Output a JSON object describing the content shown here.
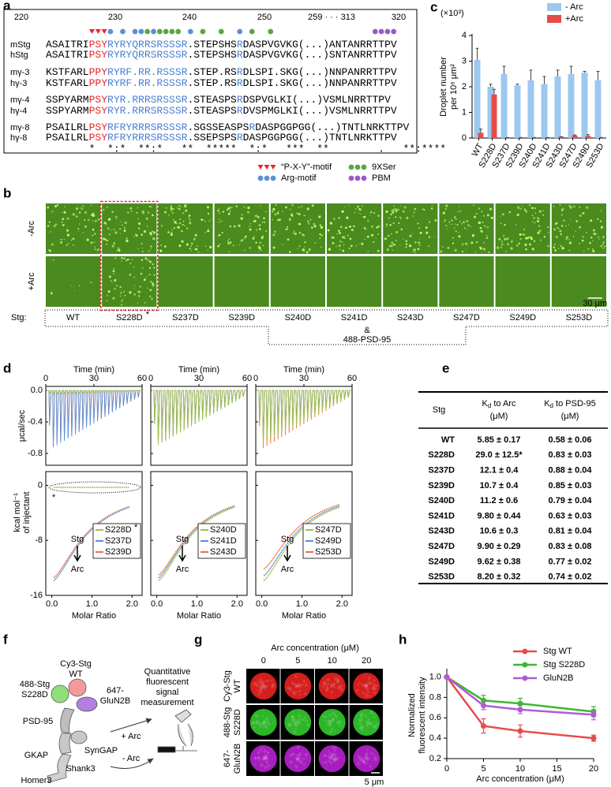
{
  "panel_a": {
    "label": "a",
    "positions": [
      220,
      230,
      240,
      250,
      "259 · · · 313",
      320
    ],
    "rows": [
      {
        "name": "mStg",
        "segments": [
          {
            "text": "ASAITRI"
          },
          {
            "text": "PSY",
            "color": "#e8262a"
          },
          {
            "text": "RYRYQRRSRSSSR",
            "color": "#4a7fd4"
          },
          {
            "text": ".STEPSHS"
          },
          {
            "text": "R",
            "color": "#4a7fd4"
          },
          {
            "text": "DASPVGVKG(...)ANTANRRTTPV"
          }
        ]
      },
      {
        "name": "hStg",
        "segments": [
          {
            "text": "ASAITRI"
          },
          {
            "text": "PSY",
            "color": "#e8262a"
          },
          {
            "text": "RYRYQRRSRSSSR",
            "color": "#4a7fd4"
          },
          {
            "text": ".STEPSHS"
          },
          {
            "text": "R",
            "color": "#4a7fd4"
          },
          {
            "text": "DASPVGVKG(...)SNTANRRTTPV"
          }
        ]
      },
      {
        "name": "mγ-3",
        "segments": [
          {
            "text": "KSTFARL"
          },
          {
            "text": "PPY",
            "color": "#e8262a"
          },
          {
            "text": "RYRF.RR.RSSSR",
            "color": "#4a7fd4"
          },
          {
            "text": ".STEP.RS"
          },
          {
            "text": "R",
            "color": "#4a7fd4"
          },
          {
            "text": "DLSPI.SKG(...)NNPANRRTTPV"
          }
        ]
      },
      {
        "name": "hγ-3",
        "segments": [
          {
            "text": "KSTFARL"
          },
          {
            "text": "PPY",
            "color": "#e8262a"
          },
          {
            "text": "RYRF.RR.RSSSR",
            "color": "#4a7fd4"
          },
          {
            "text": ".STEP.RS"
          },
          {
            "text": "R",
            "color": "#4a7fd4"
          },
          {
            "text": "DLSPI.SKG(...)NNPANRRTTPV"
          }
        ]
      },
      {
        "name": "mγ-4",
        "segments": [
          {
            "text": "SSPYARM"
          },
          {
            "text": "PSY",
            "color": "#e8262a"
          },
          {
            "text": "RYR.RRRSRSSSR",
            "color": "#4a7fd4"
          },
          {
            "text": ".STEASPS"
          },
          {
            "text": "R",
            "color": "#4a7fd4"
          },
          {
            "text": "DSPVGLKI(...)VSMLNRRTTPV"
          }
        ]
      },
      {
        "name": "hγ-4",
        "segments": [
          {
            "text": "SSPYARM"
          },
          {
            "text": "PSY",
            "color": "#e8262a"
          },
          {
            "text": "RYR.RRRSRSSSR",
            "color": "#4a7fd4"
          },
          {
            "text": ".STEASPS"
          },
          {
            "text": "R",
            "color": "#4a7fd4"
          },
          {
            "text": "DVSPMGLKI(...)VSMLNRRTTPV"
          }
        ]
      },
      {
        "name": "mγ-8",
        "segments": [
          {
            "text": "PSAILRL"
          },
          {
            "text": "PSY",
            "color": "#e8262a"
          },
          {
            "text": "RFRYRRRSRSSSR",
            "color": "#4a7fd4"
          },
          {
            "text": ".SGSSEASPS"
          },
          {
            "text": "R",
            "color": "#4a7fd4"
          },
          {
            "text": "DASPGGPGG(...)TNTLNRKTTPV"
          }
        ]
      },
      {
        "name": "hγ-8",
        "segments": [
          {
            "text": "PSAILRL"
          },
          {
            "text": "PSY",
            "color": "#e8262a"
          },
          {
            "text": "RFRYRRRSRSSSR",
            "color": "#4a7fd4"
          },
          {
            "text": ".SSEPSPS"
          },
          {
            "text": "R",
            "color": "#4a7fd4"
          },
          {
            "text": "DASPGGPGG(...)TNTLNRKTTPV"
          }
        ]
      }
    ],
    "consensus": "       *  *:*  **:*   **  *****  *:*   ***  **        .   **:****",
    "legend": [
      {
        "text": "“P-X-Y”-motif",
        "color": "#e8262a",
        "marker": "triangle"
      },
      {
        "text": "9XSer",
        "color": "#5aa640",
        "marker": "dot"
      },
      {
        "text": "Arg-motif",
        "color": "#5b8fd9",
        "marker": "dot"
      },
      {
        "text": "PBM",
        "color": "#9b59c6",
        "marker": "dot"
      }
    ]
  },
  "panel_b": {
    "label": "b",
    "rows": [
      "-Arc",
      "+Arc"
    ],
    "stg_label": "Stg:",
    "columns": [
      {
        "name": "WT"
      },
      {
        "name": "S228D",
        "mark": "*",
        "highlight": "#e8262a"
      },
      {
        "name": "S237D"
      },
      {
        "name": "S239D"
      },
      {
        "name": "S240D"
      },
      {
        "name": "S241D"
      },
      {
        "name": "S243D"
      },
      {
        "name": "S247D"
      },
      {
        "name": "S249D"
      },
      {
        "name": "S253D"
      }
    ],
    "and": "&",
    "protein": "488-PSD-95",
    "protein_color": "#2e9e3a",
    "scale": "30 μm"
  },
  "chart_data": [
    {
      "type": "bar",
      "label": "c",
      "multiplier": "(×10³)",
      "ylabel": [
        "Droplet number",
        "per 10⁶ μm²"
      ],
      "categories": [
        "WT",
        "S228D",
        "S237D",
        "S239D",
        "S240D",
        "S241D",
        "S243D",
        "S247D",
        "S249D",
        "S253D"
      ],
      "series": [
        {
          "name": "- Arc",
          "color": "#9cc8f0",
          "values": [
            3.05,
            2.0,
            2.5,
            2.05,
            2.25,
            2.1,
            2.4,
            2.5,
            2.55,
            2.25
          ],
          "errors": [
            0.45,
            0.1,
            0.3,
            0.05,
            0.4,
            0.3,
            0.25,
            0.3,
            0.05,
            0.35
          ]
        },
        {
          "name": "+Arc",
          "color": "#e84a4a",
          "values": [
            0.2,
            1.7,
            0.02,
            0.02,
            0.02,
            0.02,
            0.05,
            0.1,
            0.08,
            0.02
          ],
          "errors": [
            0.15,
            0.2,
            0,
            0,
            0,
            0,
            0,
            0.02,
            0.05,
            0
          ]
        }
      ],
      "ylim": [
        0,
        4
      ],
      "yticks": [
        0,
        1,
        2,
        3,
        4
      ]
    },
    {
      "type": "line",
      "label": "h",
      "xlabel": "Arc concentration (μM)",
      "ylabel": [
        "Normalized",
        "fluorescent intensity"
      ],
      "x": [
        0,
        5,
        10,
        20
      ],
      "series": [
        {
          "name": "Stg WT",
          "color": "#e84a4a",
          "values": [
            1.0,
            0.52,
            0.47,
            0.4
          ],
          "errors": [
            0,
            0.07,
            0.06,
            0.03
          ]
        },
        {
          "name": "Stg S228D",
          "color": "#3cb832",
          "values": [
            1.0,
            0.77,
            0.74,
            0.66
          ],
          "errors": [
            0,
            0.05,
            0.05,
            0.05
          ]
        },
        {
          "name": "GluN2B",
          "color": "#b25ad6",
          "values": [
            1.0,
            0.72,
            0.68,
            0.63
          ],
          "errors": [
            0,
            0.04,
            0.04,
            0.05
          ]
        }
      ],
      "xlim": [
        0,
        20
      ],
      "xticks": [
        0,
        5,
        10,
        15,
        20
      ],
      "ylim": [
        0.2,
        1.05
      ],
      "yticks": [
        0.2,
        0.4,
        0.6,
        0.8,
        {
          "value": 1,
          "label": "1.0"
        }
      ]
    }
  ],
  "panel_d": {
    "label": "d",
    "time_label": "Time (min)",
    "time_lim": [
      0,
      60
    ],
    "time_ticks": [
      0,
      30,
      60
    ],
    "power_label": "μcal/sec",
    "power_lim": [
      0.05,
      -0.95
    ],
    "power_ticks": [
      {
        "value": 0,
        "label": "0.0"
      },
      -0.4,
      -0.8
    ],
    "heat_label": [
      "kcal mol⁻¹",
      "of injectant"
    ],
    "heat_lim": [
      2,
      -16
    ],
    "heat_ticks": [
      0,
      -8,
      -16
    ],
    "ratio_label": "Molar Ratio",
    "ratio_lim": [
      -0.15,
      2.25
    ],
    "ratio_ticks": [
      {
        "value": 0,
        "label": "0.0"
      },
      {
        "value": 1,
        "label": "1.0"
      },
      {
        "value": 2,
        "label": "2.0"
      }
    ],
    "stg": "Stg",
    "arc": "Arc",
    "plots": [
      {
        "series": [
          {
            "name": "S228D",
            "color": "#9dc04a",
            "mark": "*"
          },
          {
            "name": "S237D",
            "color": "#5b8fd9"
          },
          {
            "name": "S239D",
            "color": "#f0703a"
          }
        ]
      },
      {
        "series": [
          {
            "name": "S240D",
            "color": "#9dc04a"
          },
          {
            "name": "S241D",
            "color": "#5b8fd9"
          },
          {
            "name": "S243D",
            "color": "#f0703a"
          }
        ]
      },
      {
        "series": [
          {
            "name": "S247D",
            "color": "#9dc04a"
          },
          {
            "name": "S249D",
            "color": "#5b8fd9"
          },
          {
            "name": "S253D",
            "color": "#f0703a"
          }
        ]
      }
    ]
  },
  "panel_e": {
    "label": "e",
    "header": [
      "Stg",
      {
        "symbol": "K",
        "subscript": "d",
        "text": " to Arc",
        "unit": "(μM)"
      },
      {
        "symbol": "K",
        "subscript": "d",
        "text": " to PSD-95",
        "unit": "(μM)"
      }
    ],
    "rows": [
      {
        "cells": [
          "WT",
          "5.85 ± 0.17",
          "0.58 ± 0.06"
        ]
      },
      {
        "cells": [
          "S228D",
          "29.0 ± 12.5*",
          "0.83 ± 0.03"
        ],
        "color": "#e8262a"
      },
      {
        "cells": [
          "S237D",
          "12.1 ± 0.4",
          "0.88 ± 0.04"
        ]
      },
      {
        "cells": [
          "S239D",
          "10.7 ± 0.4",
          "0.85 ± 0.03"
        ]
      },
      {
        "cells": [
          "S240D",
          "11.2 ± 0.6",
          "0.79 ± 0.04"
        ]
      },
      {
        "cells": [
          "S241D",
          "9.80 ± 0.44",
          "0.63 ± 0.03"
        ]
      },
      {
        "cells": [
          "S243D",
          "10.6 ± 0.3",
          "0.81 ± 0.04"
        ]
      },
      {
        "cells": [
          "S247D",
          "9.90 ± 0.29",
          "0.83 ± 0.08"
        ]
      },
      {
        "cells": [
          "S249D",
          "9.62 ± 0.38",
          "0.77 ± 0.02"
        ]
      },
      {
        "cells": [
          "S253D",
          "8.20 ± 0.32",
          "0.74 ± 0.02"
        ]
      }
    ]
  },
  "panel_f": {
    "label": "f",
    "cy3": [
      "Cy3-Stg",
      "WT"
    ],
    "s228d": [
      "488-Stg",
      "S228D"
    ],
    "glun2b": [
      "647-",
      "GluN2B"
    ],
    "psd95": "PSD-95",
    "syngap": "SynGAP",
    "gkap": "GKAP",
    "shank3": "Shank3",
    "homer3": "Homer3",
    "plus_arc": "+ Arc",
    "minus_arc": "- Arc",
    "measure": [
      "Quantitative",
      "fluorescent",
      "signal",
      "measurement"
    ]
  },
  "panel_g": {
    "label": "g",
    "title": "Arc concentration (μM)",
    "columns": [
      0,
      5,
      10,
      20
    ],
    "rows": [
      {
        "name": [
          "Cy3-Stg",
          "WT"
        ],
        "color": "#e02020"
      },
      {
        "name": [
          "488-Stg",
          "S228D"
        ],
        "color": "#2fc02a"
      },
      {
        "name": [
          "647-",
          "GluN2B"
        ],
        "color": "#b020c8"
      }
    ],
    "scale": "5 μm"
  }
}
